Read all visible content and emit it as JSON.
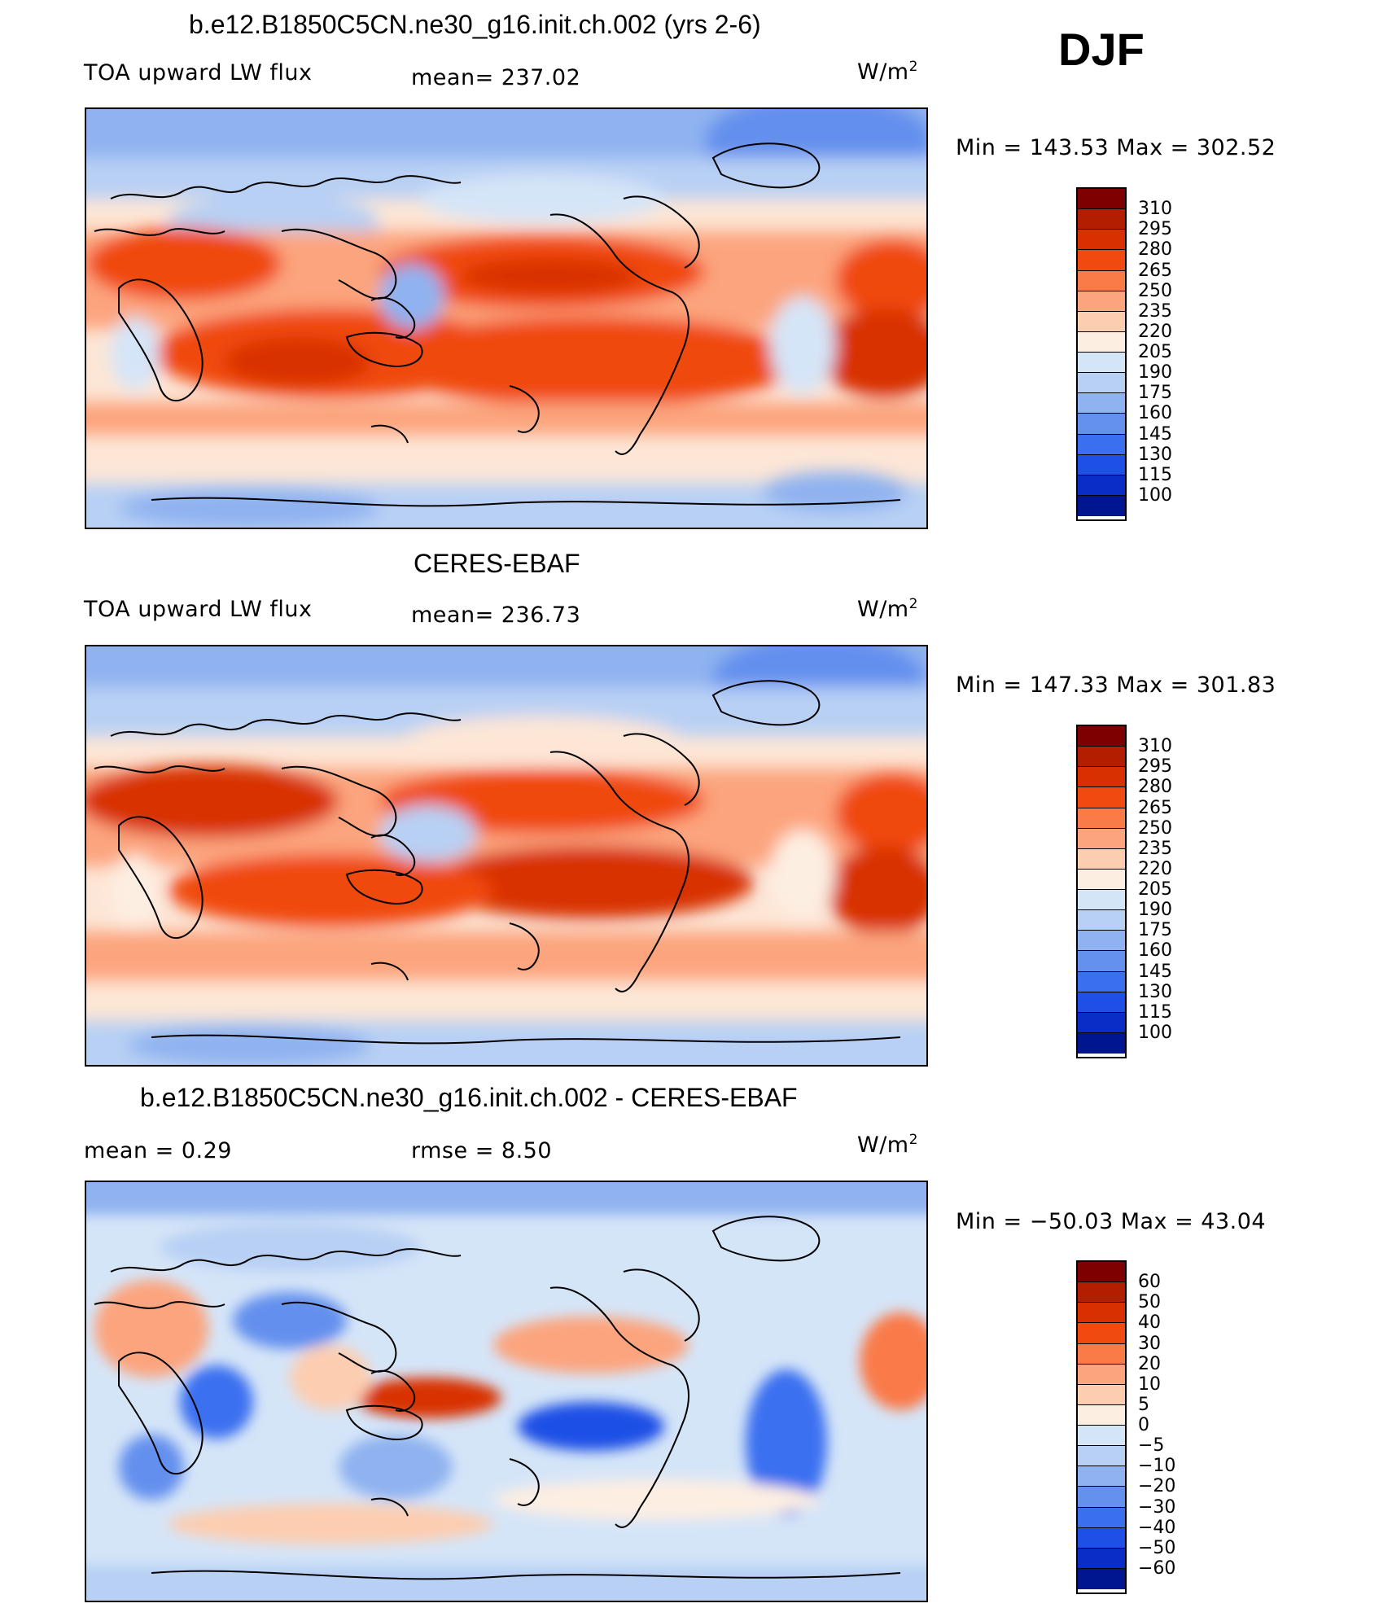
{
  "season": "DJF",
  "panels": [
    {
      "title": "b.e12.B1850C5CN.ne30_g16.init.ch.002 (yrs 2-6)",
      "left_text": "TOA upward LW flux",
      "mid_text": "mean=  237.02",
      "units": "W/m",
      "units_exp": "2",
      "minmax": "Min  =  143.53  Max  =  302.52",
      "colorbar": {
        "labels": [
          "310",
          "295",
          "280",
          "265",
          "250",
          "235",
          "220",
          "205",
          "190",
          "175",
          "160",
          "145",
          "130",
          "115",
          "100"
        ],
        "colors": [
          "#7f0000",
          "#b21e00",
          "#d83000",
          "#f04a10",
          "#fa7a48",
          "#fca47e",
          "#fdcdb0",
          "#fdeee2",
          "#d5e5f8",
          "#b8d0f4",
          "#8fb2f0",
          "#6490ee",
          "#3a6ff0",
          "#1e4fe6",
          "#0a2dc8",
          "#001690"
        ]
      }
    },
    {
      "title": "CERES-EBAF",
      "left_text": "TOA upward LW flux",
      "mid_text": "mean=  236.73",
      "units": "W/m",
      "units_exp": "2",
      "minmax": "Min  =  147.33  Max  =  301.83",
      "colorbar": {
        "labels": [
          "310",
          "295",
          "280",
          "265",
          "250",
          "235",
          "220",
          "205",
          "190",
          "175",
          "160",
          "145",
          "130",
          "115",
          "100"
        ],
        "colors": [
          "#7f0000",
          "#b21e00",
          "#d83000",
          "#f04a10",
          "#fa7a48",
          "#fca47e",
          "#fdcdb0",
          "#fdeee2",
          "#d5e5f8",
          "#b8d0f4",
          "#8fb2f0",
          "#6490ee",
          "#3a6ff0",
          "#1e4fe6",
          "#0a2dc8",
          "#001690"
        ]
      }
    },
    {
      "title": "b.e12.B1850C5CN.ne30_g16.init.ch.002 - CERES-EBAF",
      "left_text": "mean =     0.29",
      "mid_text": "rmse =     8.50",
      "units": "W/m",
      "units_exp": "2",
      "minmax": "Min  =  −50.03  Max  =    43.04",
      "colorbar": {
        "labels": [
          "60",
          "50",
          "40",
          "30",
          "20",
          "10",
          "5",
          "0",
          "−5",
          "−10",
          "−20",
          "−30",
          "−40",
          "−50",
          "−60"
        ],
        "colors": [
          "#7f0000",
          "#b21e00",
          "#d83000",
          "#f04a10",
          "#fa7a48",
          "#fca47e",
          "#fdcdb0",
          "#fdeee2",
          "#d5e5f8",
          "#b8d0f4",
          "#8fb2f0",
          "#6490ee",
          "#3a6ff0",
          "#1e4fe6",
          "#0a2dc8",
          "#001690"
        ]
      }
    }
  ]
}
